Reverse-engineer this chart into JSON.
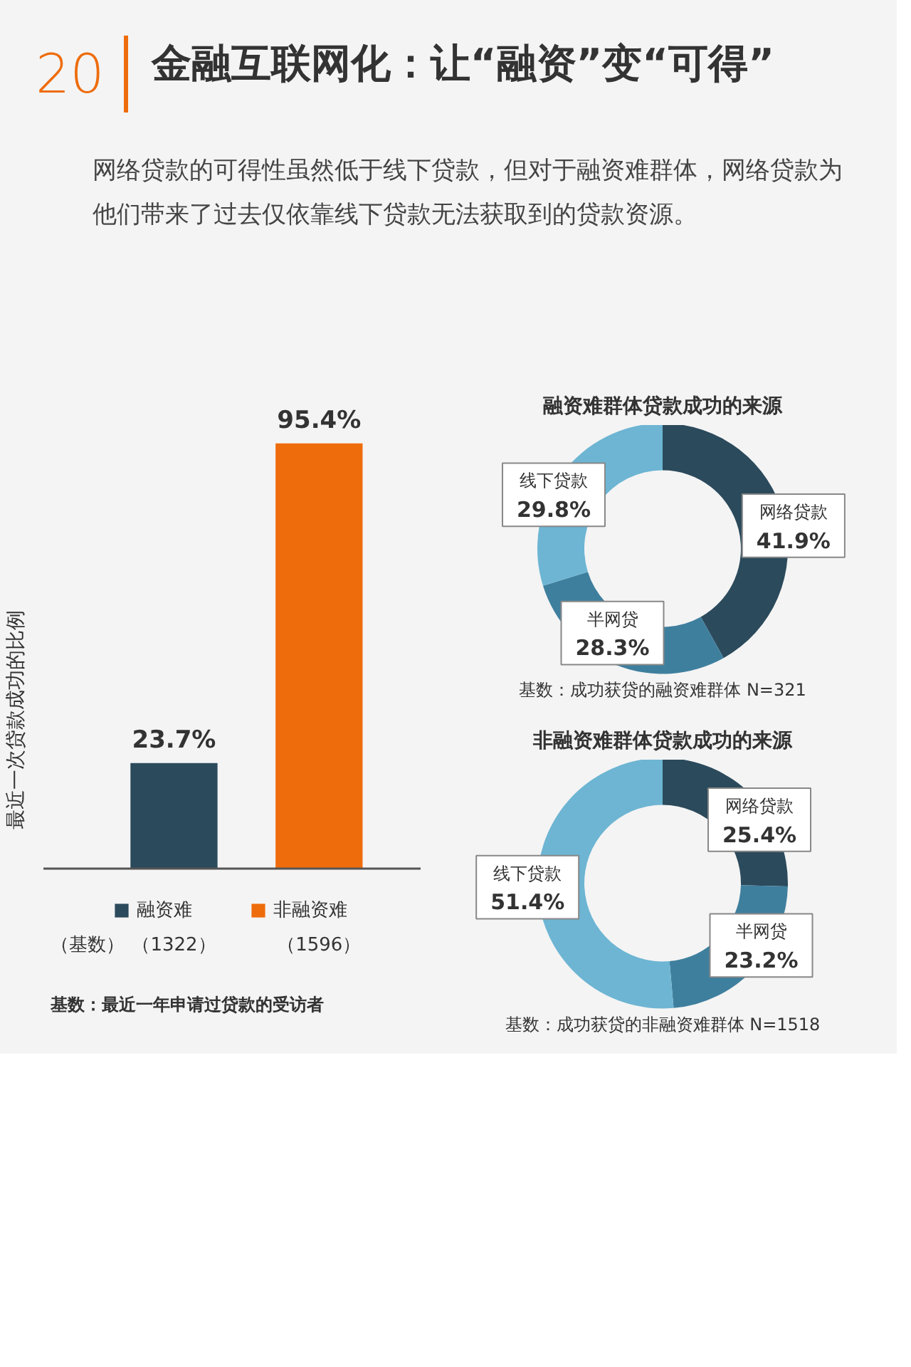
{
  "chart_data": [
    {
      "type": "bar",
      "title": "金融互联网化：让“融资”变“可得”",
      "subtitle": "网络贷款的可得性虽然低于线下贷款，但对于融资难群体，网络贷款为他们带来了过去仅依靠线下贷款无法获取到的贷款资源。",
      "ylabel": "最近一次贷款成功的比例",
      "categories": [
        null,
        null
      ],
      "stacked": true,
      "series": [
        {
          "name": "融资难",
          "color": "#2b4a5c",
          "values": [
            23.7,
            null
          ],
          "value_labels": [
            "23.7%",
            null
          ]
        },
        {
          "name": "非融资难",
          "color": "#ee6c0c",
          "values": [
            null,
            95.4
          ],
          "value_labels": [
            null,
            "95.4%"
          ]
        }
      ],
      "annotations": [
        "20",
        "（基数）",
        "（1322）",
        "（1596）",
        "基数：最近一年申请过贷款的受访者"
      ],
      "legend": "bottom"
    },
    {
      "type": "donut",
      "title": "融资难群体贷款成功的来源",
      "categories": [
        "网络贷款",
        "半网贷",
        "线下贷款"
      ],
      "values": [
        41.9,
        28.3,
        29.8
      ],
      "colors": [
        "#2b4a5c",
        "#3f7f9e",
        "#6db5d3"
      ],
      "value_labels": [
        "41.9%",
        "28.3%",
        "29.8%"
      ],
      "annotations": [
        "基数：成功获贷的融资难群体 N=321"
      ]
    },
    {
      "type": "donut",
      "title": "非融资难群体贷款成功的来源",
      "categories": [
        "网络贷款",
        "半网贷",
        "线下贷款"
      ],
      "values": [
        25.4,
        23.2,
        51.4
      ],
      "colors": [
        "#2b4a5c",
        "#3f7f9e",
        "#6db5d3"
      ],
      "value_labels": [
        "25.4%",
        "23.2%",
        "51.4%"
      ],
      "annotations": [
        "基数：成功获贷的非融资难群体 N=1518"
      ]
    }
  ]
}
